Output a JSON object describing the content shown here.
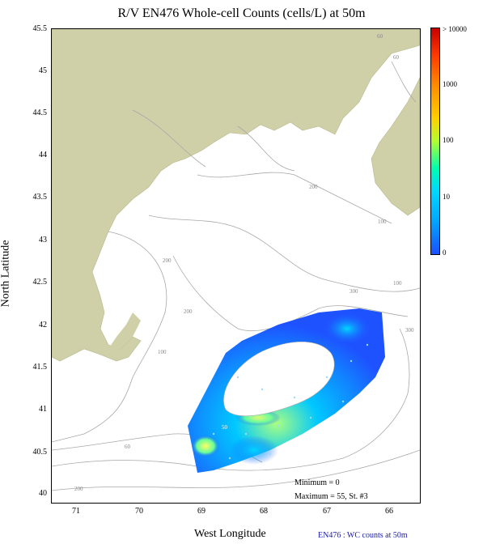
{
  "title": "R/V EN476 Whole-cell Counts (cells/L) at 50m",
  "axes": {
    "xlabel": "West Longitude",
    "ylabel": "North Latitude",
    "xticks": [
      "71",
      "70",
      "69",
      "68",
      "67",
      "66"
    ],
    "yticks": [
      "45.5",
      "45",
      "44.5",
      "44",
      "43.5",
      "43",
      "42.5",
      "42",
      "41.5",
      "41",
      "40.5",
      "40"
    ]
  },
  "colorbar": {
    "labels": [
      "> 10000",
      "1000",
      "100",
      "10",
      "0"
    ],
    "colors": [
      "#c80000",
      "#ff6a00",
      "#e6ff00",
      "#00ffb0",
      "#00a8ff",
      "#1a50ff"
    ]
  },
  "contour_labels": [
    "60",
    "200",
    "100",
    "200",
    "300",
    "100",
    "200",
    "300",
    "100",
    "60",
    "200",
    "60",
    "50"
  ],
  "stats": {
    "minimum": "Minimum = 0",
    "maximum": "Maximum = 55, St. #3"
  },
  "footer": "EN476 : WC counts at 50m",
  "colors": {
    "land": "#cfcfa8",
    "water": "#ffffff",
    "contour": "#a8a8a8",
    "plot_blue": "#1e52ff",
    "plot_yellow": "#ffff66",
    "footer_blue": "#1a1aa8"
  }
}
